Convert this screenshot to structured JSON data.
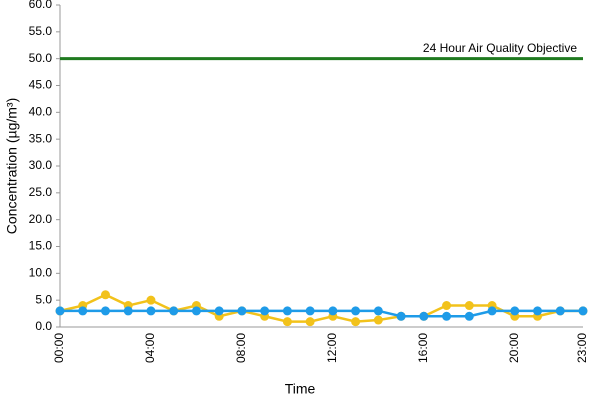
{
  "chart_data": {
    "type": "line",
    "xlabel": "Time",
    "ylabel": "Concentration (µg/m³)",
    "annotation": "24 Hour Air Quality Objective",
    "categories": [
      "00:00",
      null,
      null,
      null,
      "04:00",
      null,
      null,
      null,
      "08:00",
      null,
      null,
      null,
      "12:00",
      null,
      null,
      null,
      "16:00",
      null,
      null,
      null,
      "20:00",
      null,
      null,
      "23:00"
    ],
    "series": [
      {
        "color": "#f2c21b",
        "markers": true,
        "values": [
          3,
          4,
          6,
          4,
          5,
          3,
          4,
          2,
          3,
          2,
          1,
          1,
          2,
          1,
          1.3,
          2,
          2,
          4,
          4,
          4,
          2,
          2,
          3,
          3
        ]
      },
      {
        "color": "#1e9be8",
        "markers": true,
        "values": [
          3,
          3,
          3,
          3,
          3,
          3,
          3,
          3,
          3,
          3,
          3,
          3,
          3,
          3,
          3,
          2,
          2,
          2,
          2,
          3,
          3,
          3,
          3,
          3
        ]
      },
      {
        "color": "#1f7a1f",
        "markers": false,
        "values": [
          50,
          50,
          50,
          50,
          50,
          50,
          50,
          50,
          50,
          50,
          50,
          50,
          50,
          50,
          50,
          50,
          50,
          50,
          50,
          50,
          50,
          50,
          50,
          50
        ]
      }
    ],
    "ylim": [
      0,
      60
    ],
    "yticks": [
      {
        "value": 0,
        "label": "0.0"
      },
      {
        "value": 5,
        "label": "5.0"
      },
      {
        "value": 10,
        "label": "10.0"
      },
      {
        "value": 15,
        "label": "15.0"
      },
      {
        "value": 20,
        "label": "20.0"
      },
      {
        "value": 25,
        "label": "25.0"
      },
      {
        "value": 30,
        "label": "30.0"
      },
      {
        "value": 35,
        "label": "35.0"
      },
      {
        "value": 40,
        "label": "40.0"
      },
      {
        "value": 45,
        "label": "45.0"
      },
      {
        "value": 50,
        "label": "50.0"
      },
      {
        "value": 55,
        "label": "55.0"
      },
      {
        "value": 60,
        "label": "60.0"
      }
    ],
    "grid": false
  }
}
